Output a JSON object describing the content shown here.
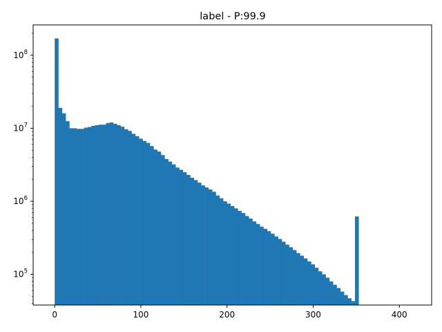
{
  "chart_data": {
    "type": "bar",
    "title": "label - P:99.9",
    "xlabel": "",
    "ylabel": "",
    "yscale": "log",
    "grid": false,
    "color": "#1f77b4",
    "xlim": [
      -25,
      437.5
    ],
    "ylim": [
      38000,
      260000000
    ],
    "x_ticks": [
      0,
      100,
      200,
      300,
      400
    ],
    "x_tick_labels": [
      "0",
      "100",
      "200",
      "300",
      "400"
    ],
    "y_ticks": [
      100000,
      1000000,
      10000000,
      100000000
    ],
    "y_tick_labels": [
      {
        "base": "10",
        "exp": "5"
      },
      {
        "base": "10",
        "exp": "6"
      },
      {
        "base": "10",
        "exp": "7"
      },
      {
        "base": "10",
        "exp": "8"
      }
    ],
    "bin_width": 4.25,
    "bin_start": 0,
    "values": [
      170000000,
      19000000,
      16000000,
      12500000,
      10000000,
      10000000,
      9800000,
      9800000,
      10200000,
      10400000,
      10800000,
      11000000,
      11200000,
      11200000,
      11800000,
      12000000,
      11500000,
      11000000,
      10500000,
      9700000,
      9200000,
      8400000,
      7800000,
      7200000,
      6700000,
      6300000,
      5700000,
      5100000,
      4800000,
      4300000,
      3800000,
      3500000,
      3200000,
      2900000,
      2700000,
      2500000,
      2300000,
      2100000,
      1950000,
      1800000,
      1650000,
      1550000,
      1450000,
      1350000,
      1200000,
      1100000,
      1000000,
      930000,
      860000,
      800000,
      740000,
      690000,
      630000,
      580000,
      530000,
      490000,
      450000,
      420000,
      390000,
      360000,
      330000,
      305000,
      280000,
      255000,
      235000,
      215000,
      195000,
      180000,
      165000,
      150000,
      137000,
      123000,
      110000,
      100000,
      90000,
      80000,
      72000,
      65000,
      58000,
      52000,
      47000,
      43000,
      620000
    ]
  }
}
